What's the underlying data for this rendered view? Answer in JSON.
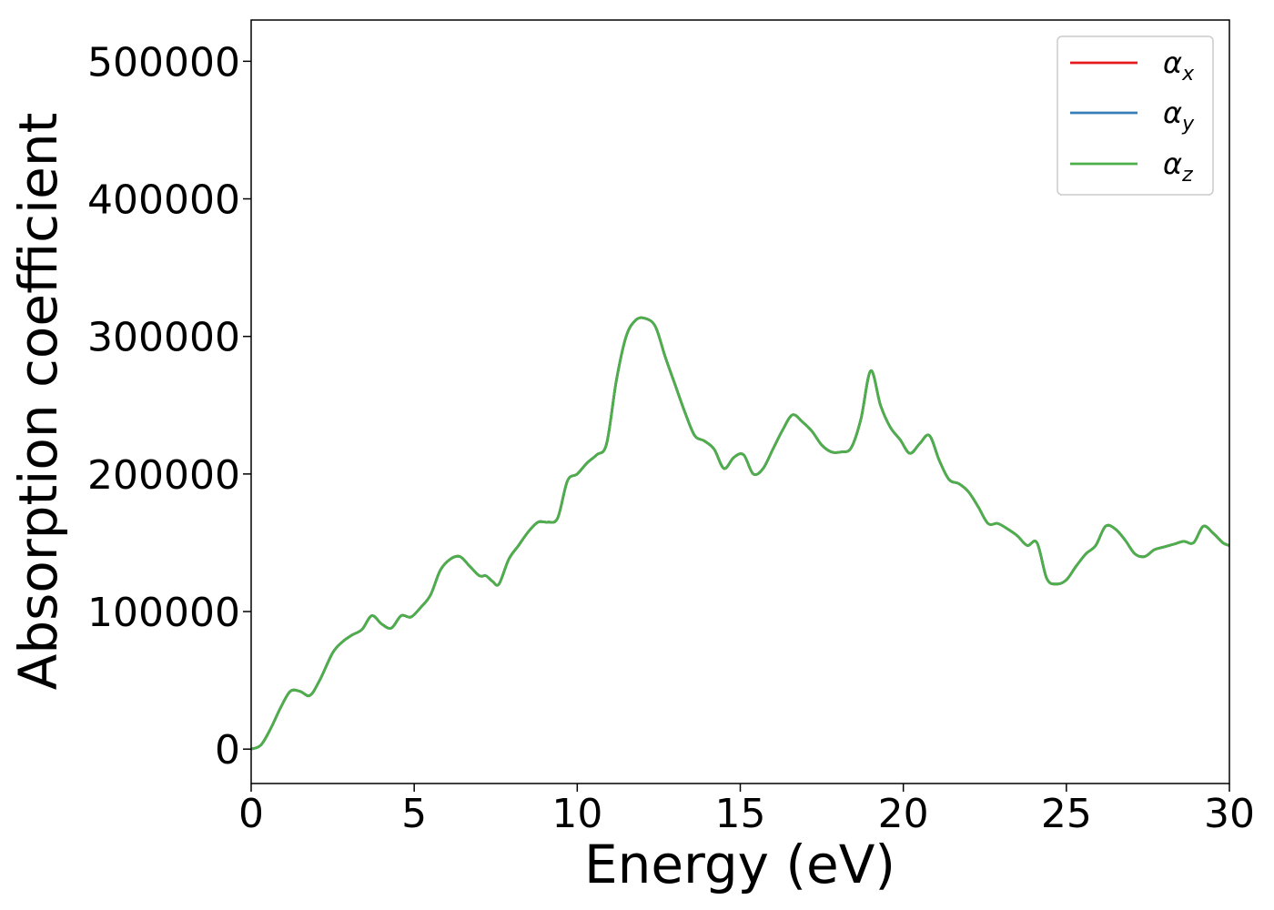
{
  "chart_data": {
    "type": "line",
    "title": "",
    "xlabel": "Energy (eV)",
    "ylabel": "Absorption coefficient",
    "xlim": [
      0,
      30
    ],
    "ylim": [
      -25000,
      530000
    ],
    "xticks": [
      0,
      5,
      10,
      15,
      20,
      25,
      30
    ],
    "xtick_labels": [
      "0",
      "5",
      "10",
      "15",
      "20",
      "25",
      "30"
    ],
    "yticks": [
      0,
      100000,
      200000,
      300000,
      400000,
      500000
    ],
    "ytick_labels": [
      "0",
      "100000",
      "200000",
      "300000",
      "400000",
      "500000"
    ],
    "grid": false,
    "legend_position": "top-right",
    "legend": [
      {
        "symbol": "α",
        "subscript": "x",
        "color": "#e41a1c"
      },
      {
        "symbol": "α",
        "subscript": "y",
        "color": "#377eb8"
      },
      {
        "symbol": "α",
        "subscript": "z",
        "color": "#4daf4a"
      }
    ],
    "series": [
      {
        "color": "#e41a1c",
        "note": "identical to other series"
      },
      {
        "color": "#377eb8",
        "note": "identical to other series"
      },
      {
        "color": "#4daf4a"
      }
    ],
    "x": [
      0,
      0.3,
      0.6,
      0.9,
      1.2,
      1.5,
      1.8,
      2.1,
      2.5,
      2.8,
      3.1,
      3.4,
      3.7,
      4.0,
      4.3,
      4.6,
      4.9,
      5.2,
      5.5,
      5.8,
      6.1,
      6.4,
      6.7,
      7.0,
      7.2,
      7.4,
      7.6,
      7.9,
      8.2,
      8.5,
      8.8,
      9.1,
      9.4,
      9.7,
      10.0,
      10.3,
      10.6,
      10.9,
      11.2,
      11.5,
      11.8,
      12.1,
      12.4,
      12.7,
      13.0,
      13.3,
      13.6,
      13.9,
      14.2,
      14.5,
      14.8,
      15.1,
      15.4,
      15.7,
      16.0,
      16.3,
      16.6,
      16.9,
      17.2,
      17.5,
      17.8,
      18.1,
      18.4,
      18.7,
      19.0,
      19.3,
      19.6,
      19.9,
      20.2,
      20.5,
      20.8,
      21.1,
      21.4,
      21.7,
      22.0,
      22.3,
      22.6,
      22.9,
      23.2,
      23.5,
      23.8,
      24.1,
      24.4,
      24.7,
      25.0,
      25.3,
      25.6,
      25.9,
      26.2,
      26.5,
      26.8,
      27.1,
      27.4,
      27.7,
      28.0,
      28.3,
      28.6,
      28.9,
      29.2,
      29.5,
      29.8,
      30.0
    ],
    "y": [
      0,
      3000,
      15000,
      30000,
      42000,
      42000,
      39000,
      50000,
      70000,
      78000,
      83000,
      87000,
      97000,
      91000,
      88000,
      97000,
      96000,
      103000,
      112000,
      130000,
      138000,
      140000,
      133000,
      126000,
      126000,
      122000,
      120000,
      138000,
      148000,
      158000,
      165000,
      165000,
      168000,
      195000,
      200000,
      208000,
      214000,
      222000,
      268000,
      300000,
      312000,
      313000,
      307000,
      285000,
      265000,
      245000,
      228000,
      224000,
      218000,
      204000,
      212000,
      214000,
      200000,
      204000,
      218000,
      232000,
      243000,
      238000,
      231000,
      221000,
      216000,
      216000,
      219000,
      240000,
      275000,
      250000,
      234000,
      225000,
      215000,
      222000,
      228000,
      210000,
      196000,
      193000,
      187000,
      176000,
      164000,
      164000,
      160000,
      155000,
      148000,
      150000,
      124000,
      120000,
      123000,
      133000,
      142000,
      148000,
      162000,
      160000,
      152000,
      142000,
      140000,
      145000,
      147000,
      149000,
      151000,
      150000,
      162000,
      157000,
      150000,
      148000
    ]
  }
}
